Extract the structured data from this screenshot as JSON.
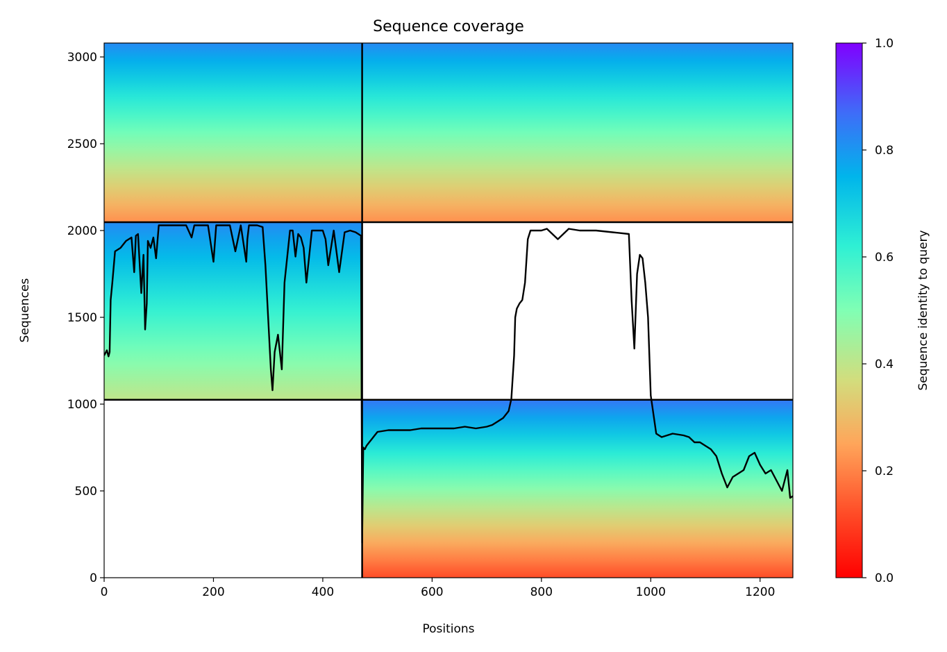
{
  "chart_data": {
    "type": "heatmap",
    "title": "Sequence coverage",
    "xlabel": "Positions",
    "ylabel": "Sequences",
    "xlim": [
      0,
      1260
    ],
    "ylim": [
      0,
      3080
    ],
    "xticks": [
      0,
      200,
      400,
      600,
      800,
      1000,
      1200
    ],
    "yticks": [
      0,
      500,
      1000,
      1500,
      2000,
      2500,
      3000
    ],
    "colorbar": {
      "label": "Sequence identity to query",
      "range": [
        0,
        1
      ],
      "ticks": [
        "0.0",
        "0.2",
        "0.4",
        "0.6",
        "0.8",
        "1.0"
      ],
      "colormap": "rainbow_r"
    },
    "chain_boundaries": {
      "x": [
        472
      ],
      "y": [
        1025,
        2048
      ]
    },
    "blocks": [
      {
        "name": "chain 1 MSA block",
        "x": [
          0,
          472
        ],
        "y": [
          2048,
          3080
        ],
        "identity_top": 0.82,
        "identity_bottom": 0.22
      },
      {
        "name": "chain 2 paired block",
        "x": [
          472,
          1260
        ],
        "y": [
          2048,
          3080
        ],
        "identity_top": 0.82,
        "identity_bottom": 0.22
      },
      {
        "name": "chain 1 block",
        "x": [
          0,
          472
        ],
        "y": [
          1025,
          2048
        ],
        "identity_top": 0.82,
        "identity_bottom": 0.4
      },
      {
        "name": "chain 2 block",
        "x": [
          472,
          1260
        ],
        "y": [
          0,
          1025
        ],
        "identity_top": 0.85,
        "identity_bottom": 0.12
      }
    ],
    "series": [
      {
        "color": "#000000",
        "x": [
          0,
          5,
          8,
          10,
          12,
          15,
          20,
          30,
          40,
          50,
          55,
          58,
          62,
          68,
          72,
          75,
          78,
          80,
          85,
          90,
          95,
          100,
          110,
          130,
          150,
          160,
          165,
          170,
          190,
          200,
          205,
          210,
          230,
          240,
          250,
          260,
          262,
          265,
          270,
          280,
          290,
          295,
          300,
          305,
          308,
          312,
          318,
          325,
          330,
          340,
          345,
          350,
          355,
          360,
          365,
          370,
          380,
          390,
          400,
          405,
          410,
          420,
          430,
          440,
          450,
          460,
          470,
          472,
          474,
          477,
          480,
          485,
          490,
          495,
          500,
          520,
          540,
          560,
          580,
          600,
          620,
          640,
          660,
          680,
          700,
          710,
          720,
          730,
          740,
          745,
          750,
          752,
          755,
          760,
          765,
          770,
          775,
          780,
          800,
          810,
          830,
          850,
          870,
          900,
          930,
          960,
          965,
          970,
          975,
          980,
          985,
          990,
          995,
          1000,
          1010,
          1020,
          1040,
          1060,
          1070,
          1080,
          1090,
          1100,
          1110,
          1120,
          1130,
          1140,
          1150,
          1160,
          1170,
          1180,
          1190,
          1200,
          1210,
          1220,
          1230,
          1240,
          1250,
          1255,
          1260
        ],
        "values": [
          1280,
          1310,
          1275,
          1300,
          1600,
          1700,
          1880,
          1900,
          1940,
          1960,
          1760,
          1970,
          1980,
          1640,
          1860,
          1430,
          1580,
          1940,
          1900,
          1960,
          1840,
          2030,
          2030,
          2030,
          2030,
          1960,
          2030,
          2030,
          2030,
          1820,
          2030,
          2030,
          2030,
          1880,
          2030,
          1820,
          1950,
          2030,
          2030,
          2030,
          2020,
          1800,
          1500,
          1200,
          1080,
          1300,
          1400,
          1200,
          1700,
          2000,
          2000,
          1850,
          1980,
          1960,
          1900,
          1700,
          2000,
          2000,
          2000,
          1950,
          1800,
          2000,
          1760,
          1990,
          2000,
          1990,
          1970,
          200,
          750,
          740,
          760,
          780,
          800,
          820,
          840,
          850,
          850,
          850,
          860,
          860,
          860,
          860,
          870,
          860,
          870,
          880,
          900,
          920,
          960,
          1030,
          1280,
          1500,
          1550,
          1580,
          1600,
          1700,
          1950,
          2000,
          2000,
          2010,
          1950,
          2010,
          2000,
          2000,
          1990,
          1980,
          1600,
          1320,
          1750,
          1860,
          1840,
          1700,
          1500,
          1050,
          830,
          810,
          830,
          820,
          810,
          780,
          780,
          760,
          740,
          700,
          600,
          520,
          580,
          600,
          620,
          700,
          720,
          650,
          600,
          620,
          560,
          500,
          620,
          460,
          470
        ]
      }
    ]
  }
}
